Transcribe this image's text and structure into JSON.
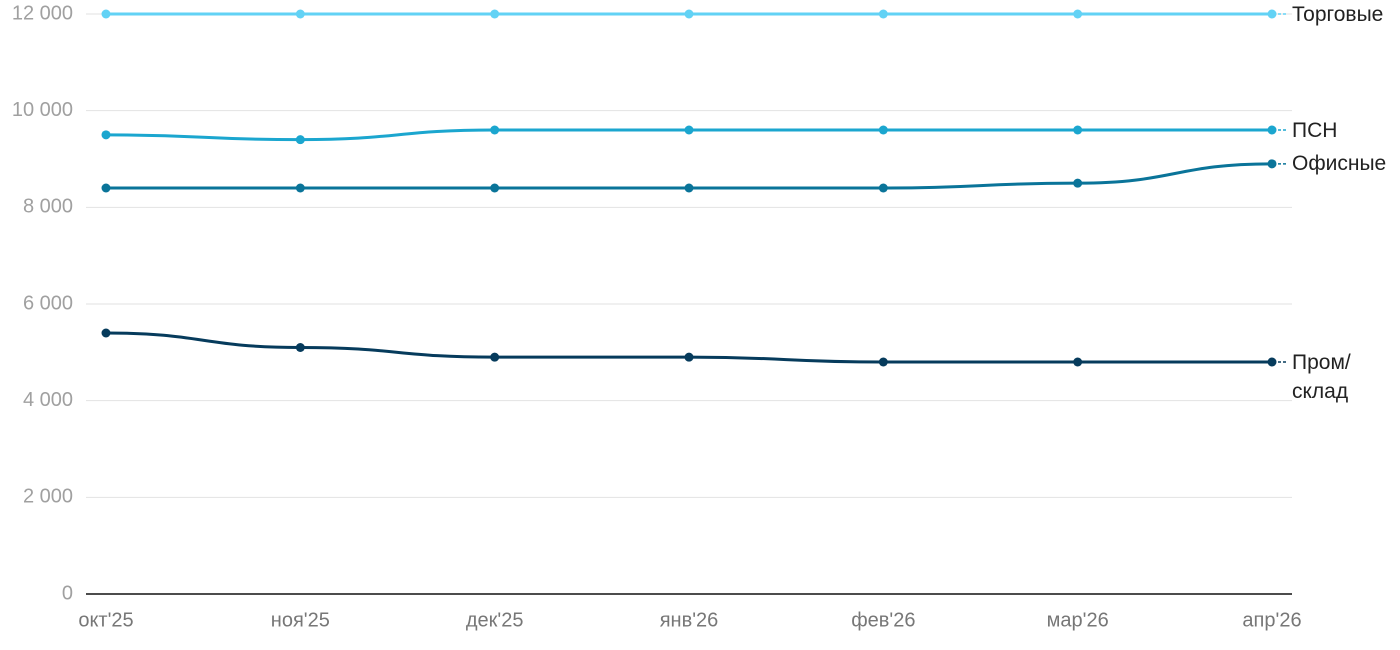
{
  "chart_data": {
    "type": "line",
    "categories": [
      "окт'25",
      "ноя'25",
      "дек'25",
      "янв'26",
      "фев'26",
      "мар'26",
      "апр'26"
    ],
    "series": [
      {
        "name": "Торговые",
        "color": "#62d2f5",
        "values": [
          12000,
          12000,
          12000,
          12000,
          12000,
          12000,
          12000
        ]
      },
      {
        "name": "ПСН",
        "color": "#1ba6cf",
        "values": [
          9500,
          9400,
          9600,
          9600,
          9600,
          9600,
          9600
        ]
      },
      {
        "name": "Офисные",
        "color": "#0a7499",
        "values": [
          8400,
          8400,
          8400,
          8400,
          8400,
          8500,
          8900
        ]
      },
      {
        "name": "Пром/\nсклад",
        "color": "#063b5c",
        "values": [
          5400,
          5100,
          4900,
          4900,
          4800,
          4800,
          4800
        ]
      }
    ],
    "ylim": [
      0,
      12000
    ],
    "yticks": [
      0,
      {
        "value": 2000,
        "label": "2 000"
      },
      {
        "value": 4000,
        "label": "4 000"
      },
      {
        "value": 6000,
        "label": "6 000"
      },
      {
        "value": 8000,
        "label": "8 000"
      },
      {
        "value": 10000,
        "label": "10 000"
      },
      {
        "value": 12000,
        "label": "12 000"
      }
    ],
    "grid": true
  }
}
